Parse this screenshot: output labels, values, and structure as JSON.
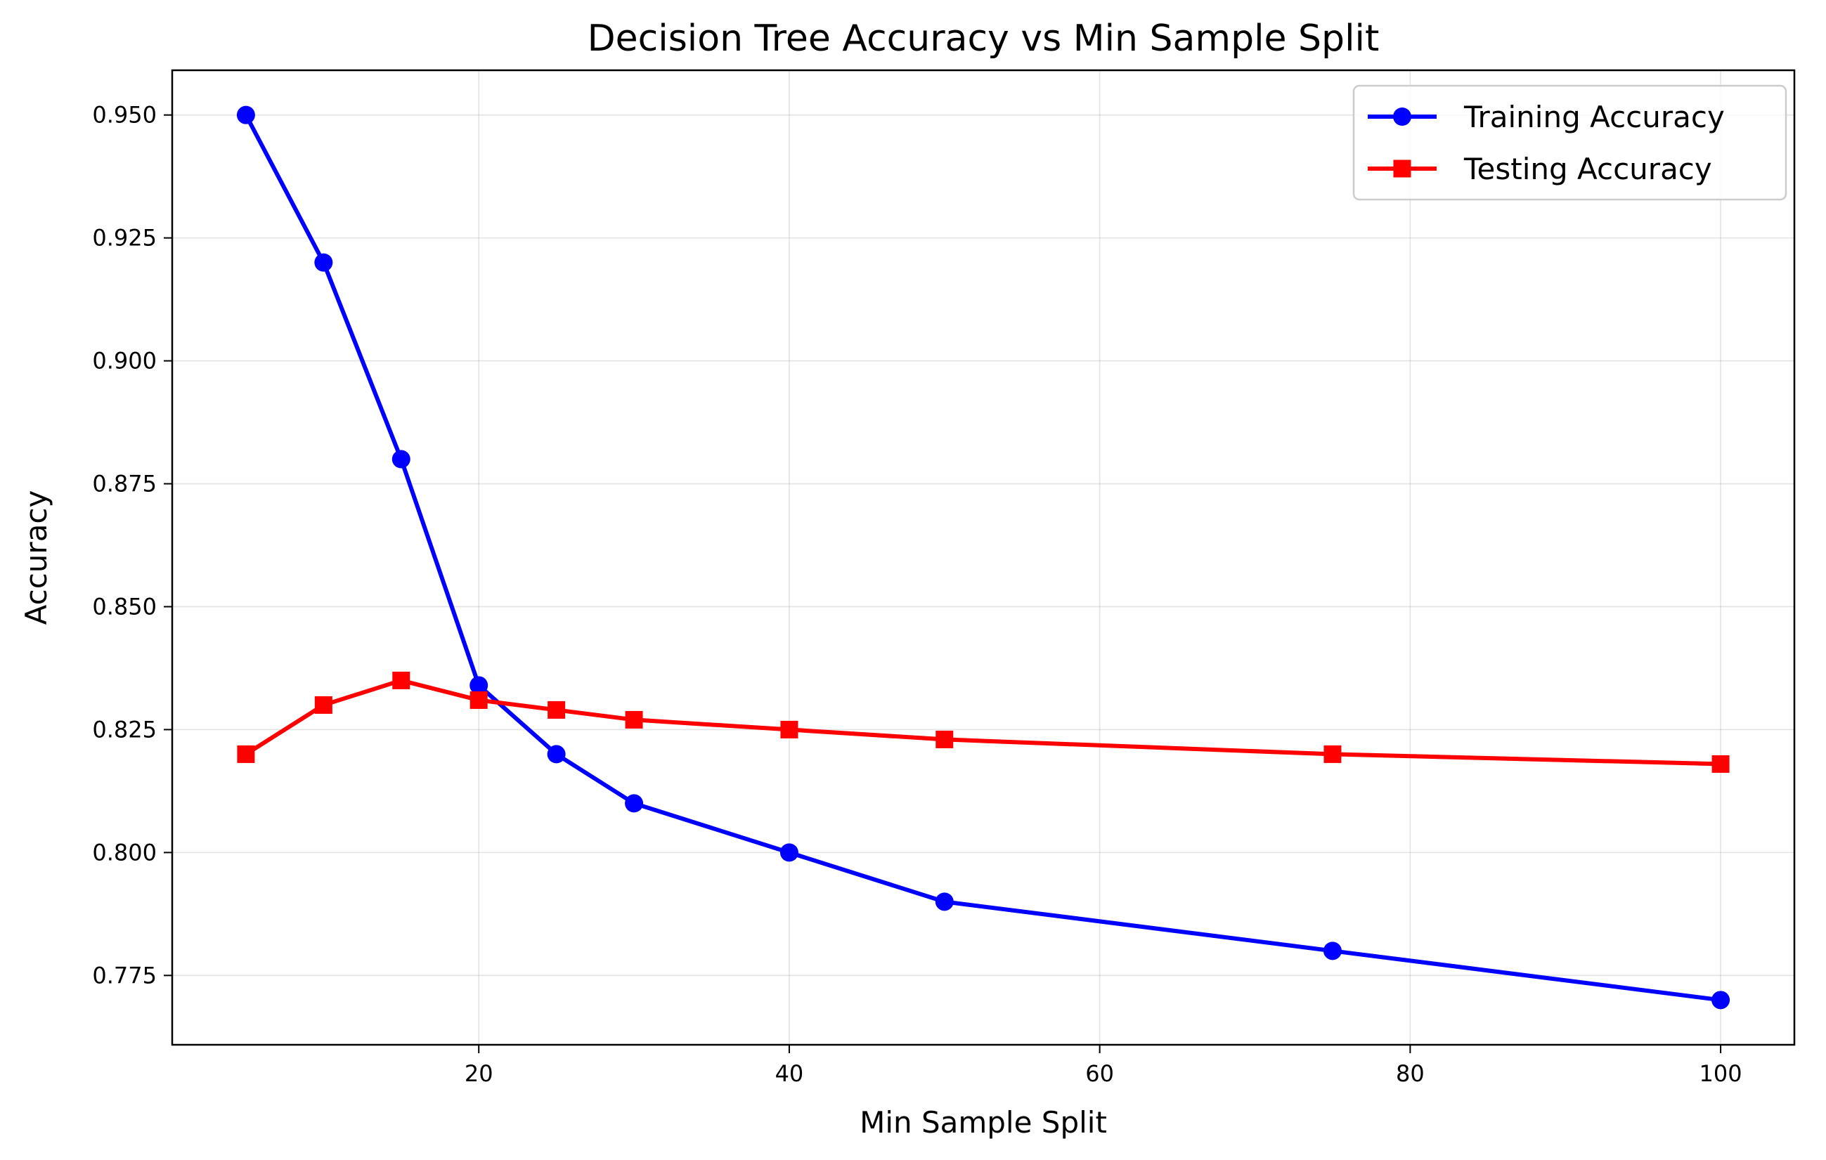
{
  "chart_data": {
    "type": "line",
    "title": "Decision Tree Accuracy vs Min Sample Split",
    "xlabel": "Min Sample Split",
    "ylabel": "Accuracy",
    "x": [
      5,
      10,
      15,
      20,
      25,
      30,
      40,
      50,
      75,
      100
    ],
    "xlim": [
      0.25,
      104.75
    ],
    "ylim": [
      0.7609,
      0.9591
    ],
    "xticks": [
      20,
      40,
      60,
      80,
      100
    ],
    "xtick_labels": [
      "20",
      "40",
      "60",
      "80",
      "100"
    ],
    "yticks": [
      0.775,
      0.8,
      0.825,
      0.85,
      0.875,
      0.9,
      0.925,
      0.95
    ],
    "ytick_labels": [
      "0.775",
      "0.800",
      "0.825",
      "0.850",
      "0.875",
      "0.900",
      "0.925",
      "0.950"
    ],
    "grid": true,
    "legend_position": "top-right",
    "series": [
      {
        "name": "Training Accuracy",
        "color": "#0000ff",
        "marker": "circle",
        "values": [
          0.95,
          0.92,
          0.88,
          0.834,
          0.82,
          0.81,
          0.8,
          0.79,
          0.78,
          0.77
        ]
      },
      {
        "name": "Testing Accuracy",
        "color": "#ff0000",
        "marker": "square",
        "values": [
          0.82,
          0.83,
          0.835,
          0.831,
          0.829,
          0.827,
          0.825,
          0.823,
          0.82,
          0.818
        ]
      }
    ]
  }
}
